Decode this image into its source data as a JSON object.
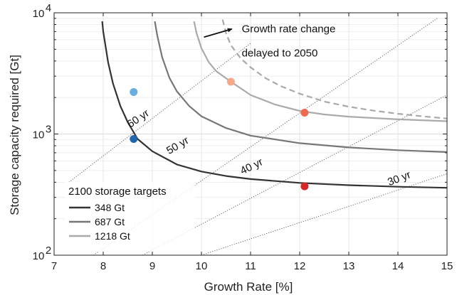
{
  "chart_data": {
    "type": "line",
    "xlabel": "Growth Rate [%]",
    "ylabel": "Storage capacity required [Gt]",
    "xlim": [
      7,
      15
    ],
    "ylim": [
      100,
      10000
    ],
    "yscale": "log",
    "grid": true,
    "x_ticks": [
      "7",
      "8",
      "9",
      "10",
      "11",
      "12",
      "13",
      "14",
      "15"
    ],
    "y_ticks": [
      {
        "base": "10",
        "exp": "2",
        "value": 100
      },
      {
        "base": "10",
        "exp": "3",
        "value": 1000
      },
      {
        "base": "10",
        "exp": "4",
        "value": 10000
      }
    ],
    "legend": {
      "title": "2100 storage targets",
      "placement": "bottom-left",
      "entries": [
        {
          "label": "348 Gt",
          "color": "#333333"
        },
        {
          "label": "687 Gt",
          "color": "#777777"
        },
        {
          "label": "1218 Gt",
          "color": "#aaaaaa"
        }
      ]
    },
    "series": [
      {
        "name": "348 Gt",
        "color": "#333333",
        "style": "solid",
        "x": [
          7.98,
          8.0,
          8.1,
          8.2,
          8.35,
          8.5,
          8.7,
          9.0,
          9.5,
          10.0,
          10.5,
          11.0,
          12.0,
          13.0,
          14.0,
          15.0
        ],
        "y": [
          8500,
          7000,
          3900,
          2600,
          1700,
          1250,
          910,
          720,
          560,
          490,
          450,
          425,
          395,
          378,
          367,
          360
        ]
      },
      {
        "name": "687 Gt",
        "color": "#777777",
        "style": "solid",
        "x": [
          9.05,
          9.1,
          9.2,
          9.35,
          9.5,
          9.75,
          10.0,
          10.5,
          11.0,
          12.0,
          13.0,
          14.0,
          15.0
        ],
        "y": [
          8500,
          6500,
          4300,
          2900,
          2250,
          1700,
          1400,
          1120,
          970,
          840,
          775,
          735,
          710
        ]
      },
      {
        "name": "1218 Gt",
        "color": "#aaaaaa",
        "style": "solid",
        "x": [
          9.85,
          9.9,
          10.0,
          10.15,
          10.3,
          10.6,
          11.0,
          11.5,
          12.0,
          12.5,
          13.0,
          14.0,
          15.0
        ],
        "y": [
          8500,
          6800,
          5100,
          3900,
          3300,
          2700,
          2100,
          1750,
          1550,
          1450,
          1390,
          1320,
          1275
        ]
      },
      {
        "name": "Growth rate change delayed to 2050",
        "color": "#aaaaaa",
        "style": "dashed",
        "x": [
          10.43,
          10.5,
          10.6,
          10.8,
          11.0,
          11.3,
          11.6,
          12.0,
          12.5,
          13.0,
          13.5,
          14.0,
          14.5,
          15.0
        ],
        "y": [
          8800,
          6800,
          5400,
          4200,
          3550,
          2900,
          2500,
          2150,
          1850,
          1680,
          1560,
          1470,
          1400,
          1340
        ]
      }
    ],
    "isolines": [
      {
        "label": "60 yr",
        "x": [
          7.3,
          11.0
        ],
        "y": [
          400,
          5600
        ]
      },
      {
        "label": "50 yr",
        "x": [
          7.8,
          14.8
        ],
        "y": [
          100,
          9000
        ]
      },
      {
        "label": "40 yr",
        "x": [
          8.8,
          15.0
        ],
        "y": [
          100,
          2100
        ]
      },
      {
        "label": "30 yr",
        "x": [
          10.0,
          15.0
        ],
        "y": [
          100,
          470
        ]
      }
    ],
    "isoline_label_positions": [
      {
        "label": "60 yr",
        "x": 8.75,
        "y": 1270,
        "angle": -34
      },
      {
        "label": "50 yr",
        "x": 9.55,
        "y": 760,
        "angle": -31
      },
      {
        "label": "40 yr",
        "x": 11.05,
        "y": 510,
        "angle": -26
      },
      {
        "label": "30 yr",
        "x": 14.05,
        "y": 405,
        "angle": -21
      }
    ],
    "points": [
      {
        "x": 8.62,
        "y": 2220,
        "color": "#6aaee0"
      },
      {
        "x": 8.62,
        "y": 910,
        "color": "#2166ac"
      },
      {
        "x": 10.6,
        "y": 2700,
        "color": "#f7a88a"
      },
      {
        "x": 12.1,
        "y": 1500,
        "color": "#ee6a50"
      },
      {
        "x": 12.1,
        "y": 370,
        "color": "#d62728"
      }
    ],
    "annotation": {
      "lines": [
        "Growth rate change",
        "delayed to 2050"
      ],
      "text_x": 10.82,
      "text_y1": 6900,
      "text_y2": 4350,
      "arrow_from": {
        "x": 10.05,
        "y": 6300
      },
      "arrow_to": {
        "x": 10.62,
        "y": 7350
      }
    }
  }
}
